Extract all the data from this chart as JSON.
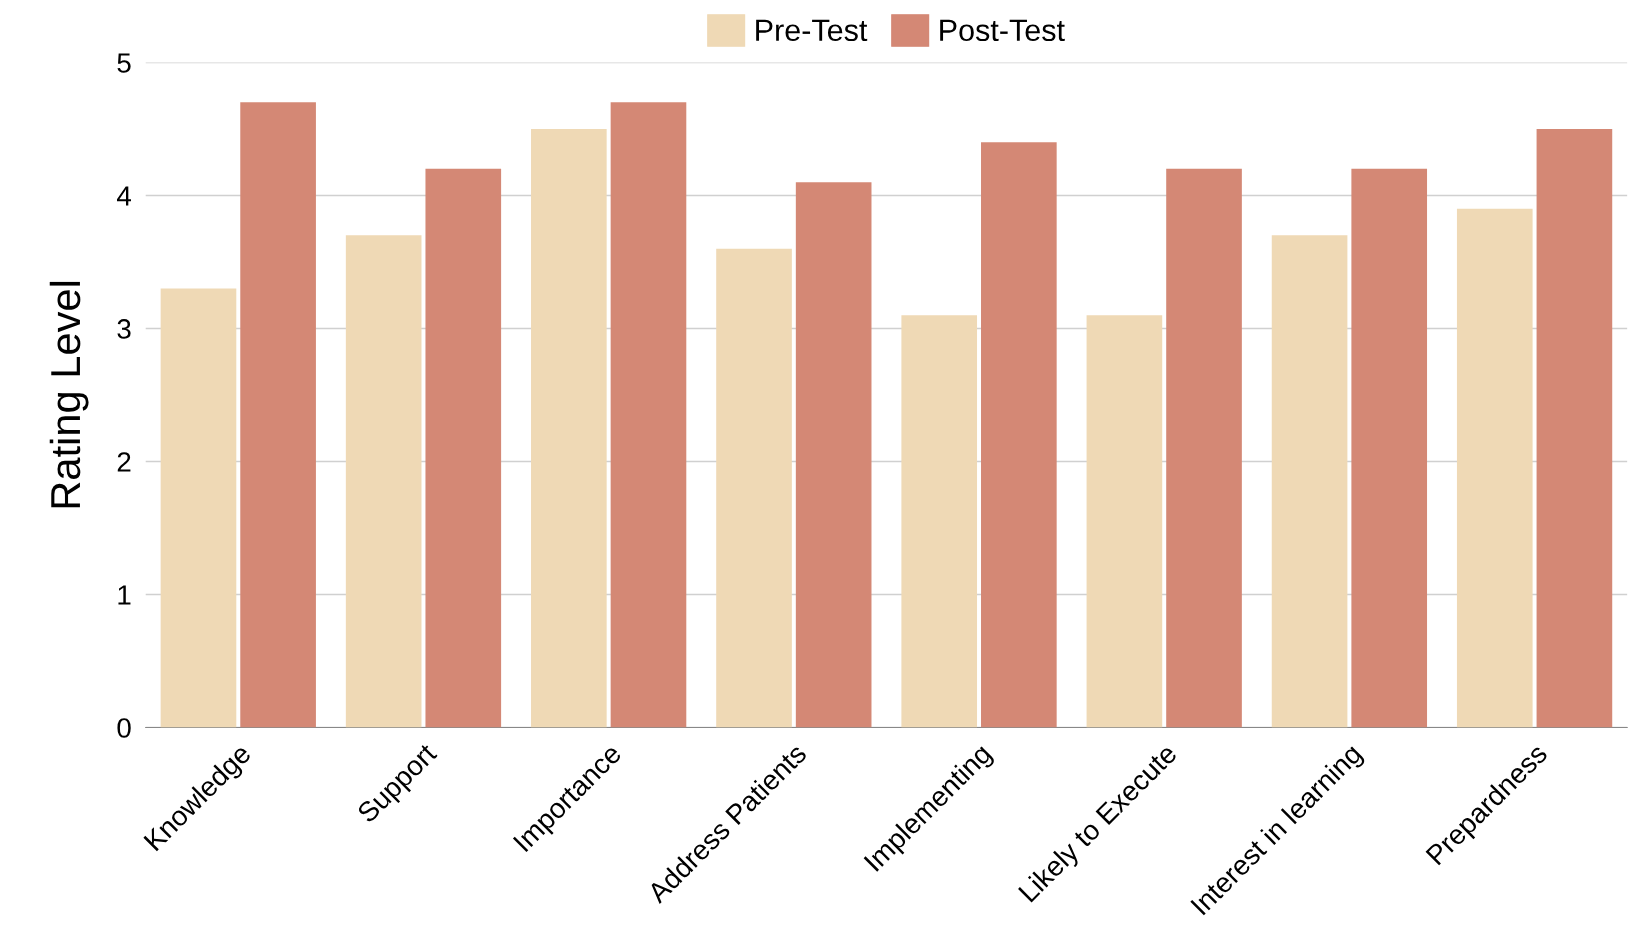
{
  "chart_data": {
    "type": "bar",
    "ylabel": "Rating Level",
    "categories": [
      "Knowledge",
      "Support",
      "Importance",
      "Address Patients",
      "Implementing",
      "Likely to Execute",
      "Interest in learning",
      "Prepardness"
    ],
    "series": [
      {
        "name": "Pre-Test",
        "color": "#efd9b5",
        "values": [
          3.3,
          3.7,
          4.5,
          3.6,
          3.1,
          3.1,
          3.7,
          3.9
        ]
      },
      {
        "name": "Post-Test",
        "color": "#d48875",
        "values": [
          4.7,
          4.2,
          4.7,
          4.1,
          4.4,
          4.2,
          4.2,
          4.5
        ]
      }
    ],
    "ylim": [
      0,
      5
    ],
    "yticks": [
      0,
      1,
      2,
      3,
      4,
      5
    ],
    "grid": "y",
    "legend": "top"
  }
}
